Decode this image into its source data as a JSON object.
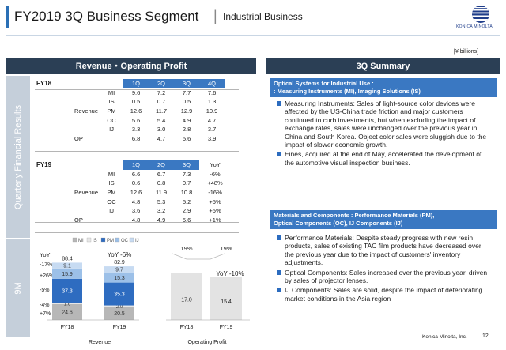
{
  "header": {
    "title": "FY2019 3Q Business Segment",
    "separator": "|",
    "subtitle": "Industrial Business",
    "logo_text": "KONICA MINOLTA"
  },
  "unit": "[¥ billions]",
  "left_panel": {
    "title": "Revenue・Operating Profit",
    "side_label_quarterly": "Quarterly Financial Results",
    "side_label_9m": "9M"
  },
  "table_fy18": {
    "year": "FY18",
    "quarters": [
      "1Q",
      "2Q",
      "3Q",
      "4Q"
    ],
    "rows": [
      {
        "group": "",
        "seg": "MI",
        "values": [
          "9.6",
          "7.2",
          "7.7",
          "7.6"
        ]
      },
      {
        "group": "",
        "seg": "IS",
        "values": [
          "0.5",
          "0.7",
          "0.5",
          "1.3"
        ]
      },
      {
        "group": "Revenue",
        "seg": "PM",
        "values": [
          "12.6",
          "11.7",
          "12.9",
          "10.9"
        ]
      },
      {
        "group": "",
        "seg": "OC",
        "values": [
          "5.6",
          "5.4",
          "4.9",
          "4.7"
        ]
      },
      {
        "group": "",
        "seg": "IJ",
        "values": [
          "3.3",
          "3.0",
          "2.8",
          "3.7"
        ]
      },
      {
        "group": "OP",
        "seg": "",
        "values": [
          "6.8",
          "4.7",
          "5.6",
          "3.9"
        ]
      }
    ]
  },
  "table_fy19": {
    "year": "FY19",
    "quarters": [
      "1Q",
      "2Q",
      "3Q"
    ],
    "yoy_header": "YoY",
    "rows": [
      {
        "group": "",
        "seg": "MI",
        "values": [
          "6.6",
          "6.7",
          "7.3"
        ],
        "yoy": "-6%"
      },
      {
        "group": "",
        "seg": "IS",
        "values": [
          "0.6",
          "0.8",
          "0.7"
        ],
        "yoy": "+48%"
      },
      {
        "group": "Revenue",
        "seg": "PM",
        "values": [
          "12.6",
          "11.9",
          "10.8"
        ],
        "yoy": "-16%"
      },
      {
        "group": "",
        "seg": "OC",
        "values": [
          "4.8",
          "5.3",
          "5.2"
        ],
        "yoy": "+5%"
      },
      {
        "group": "",
        "seg": "IJ",
        "values": [
          "3.6",
          "3.2",
          "2.9"
        ],
        "yoy": "+5%"
      },
      {
        "group": "OP",
        "seg": "",
        "values": [
          "4.8",
          "4.9",
          "5.6"
        ],
        "yoy": "+1%"
      }
    ]
  },
  "chart_data": [
    {
      "type": "bar",
      "stacked": true,
      "xlabel": "Revenue",
      "categories": [
        "FY18",
        "FY19"
      ],
      "series": [
        {
          "name": "MI",
          "values": [
            24.6,
            20.5
          ],
          "color": "#b7b7b7"
        },
        {
          "name": "IS",
          "values": [
            1.6,
            2.0
          ],
          "color": "#e7e7e7"
        },
        {
          "name": "PM",
          "values": [
            37.3,
            35.3
          ],
          "color": "#2e6cc0"
        },
        {
          "name": "OC",
          "values": [
            15.9,
            15.3
          ],
          "color": "#9cc0e8"
        },
        {
          "name": "IJ",
          "values": [
            9.1,
            9.7
          ],
          "color": "#c7dbf2"
        }
      ],
      "totals": [
        88.4,
        82.9
      ],
      "yoy_header": "YoY",
      "yoy_total": "-6%",
      "yoy_by_segment": [
        "+7%",
        "-4%",
        "-5%",
        "+26%",
        "-17%"
      ],
      "legend": "top"
    },
    {
      "type": "bar",
      "xlabel": "Operating Profit",
      "categories": [
        "FY18",
        "FY19"
      ],
      "values": [
        17.0,
        15.4
      ],
      "margin_labels": [
        "19%",
        "19%"
      ],
      "yoy_header": "YoY",
      "yoy": "-10%",
      "color": "#e3e3e3"
    }
  ],
  "right_panel": {
    "title": "3Q Summary",
    "section1_head_line1": "Optical Systems for Industrial Use :",
    "section1_head_line2": ": Measuring Instruments (MI), Imaging Solutions (IS)",
    "section1_bullets": [
      "Measuring Instruments: Sales of light-source color devices were affected by the US-China trade friction and major customers continued to curb investments, but when excluding the impact of exchange rates, sales were unchanged over the previous year in China and South Korea. Object color sales were sluggish due to the impact of slower economic growth.",
      "Eines, acquired at the end of May, accelerated the development of the automotive visual inspection business."
    ],
    "section2_head_line1": "Materials and Components : Performance Materials (PM),",
    "section2_head_line2": "Optical Components (OC), IJ Components (IJ)",
    "section2_bullets": [
      "Performance Materials: Despite steady progress with new resin products, sales of existing TAC film products have decreased over the previous year due to the impact of customers' inventory adjustments.",
      "Optical Components: Sales increased over the previous year, driven by sales of projector lenses.",
      "IJ Components: Sales are solid, despite the impact of deteriorating market conditions in the Asia region"
    ]
  },
  "footer": {
    "company": "Konica Minolta, Inc.",
    "page": "12"
  }
}
